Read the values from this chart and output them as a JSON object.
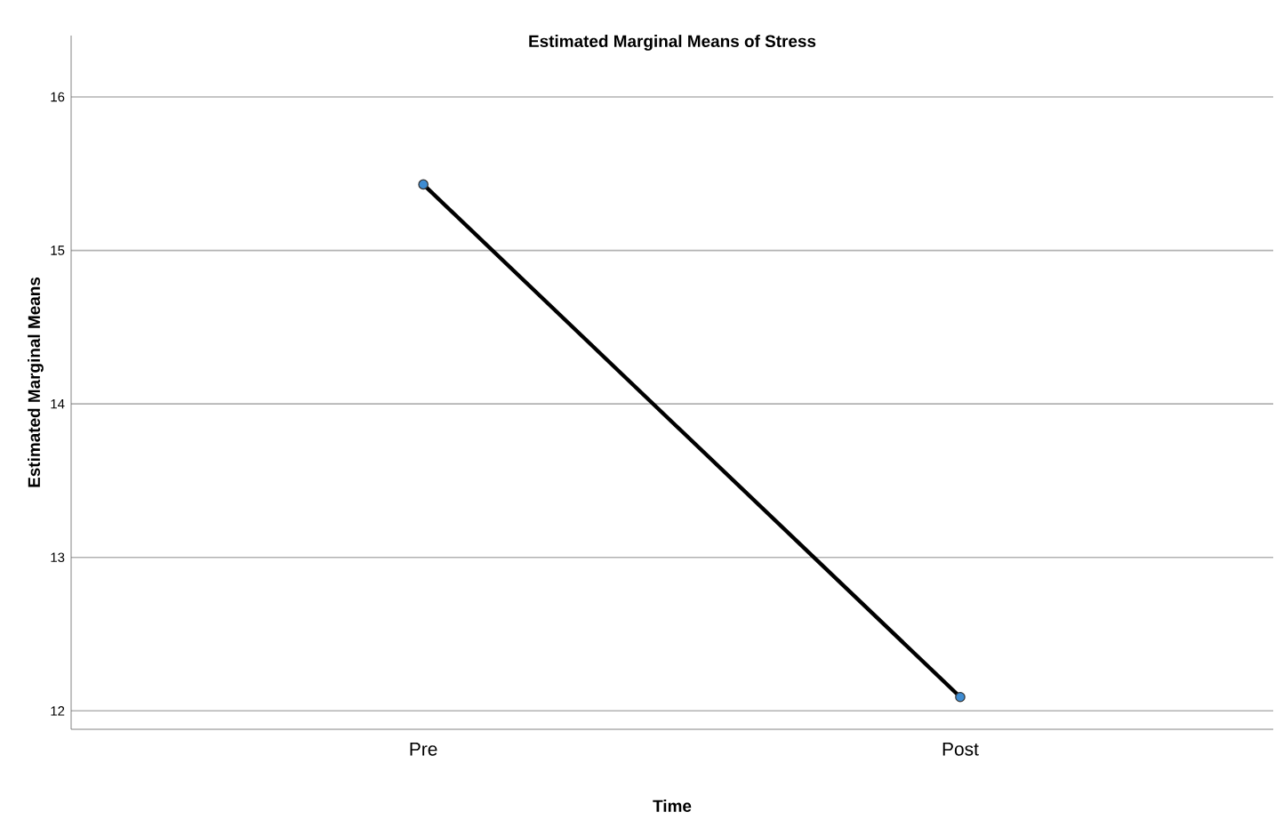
{
  "chart_data": {
    "type": "line",
    "title": "Estimated Marginal Means of Stress",
    "xlabel": "Time",
    "ylabel": "Estimated Marginal Means",
    "categories": [
      "Pre",
      "Post"
    ],
    "series": [
      {
        "color": "#000000",
        "values": [
          15.43,
          12.09
        ]
      }
    ],
    "ylim": [
      11.88,
      16.4
    ],
    "yticks": [
      12,
      13,
      14,
      15,
      16
    ],
    "grid": "y",
    "marker": "circle",
    "line_style": "solid"
  }
}
